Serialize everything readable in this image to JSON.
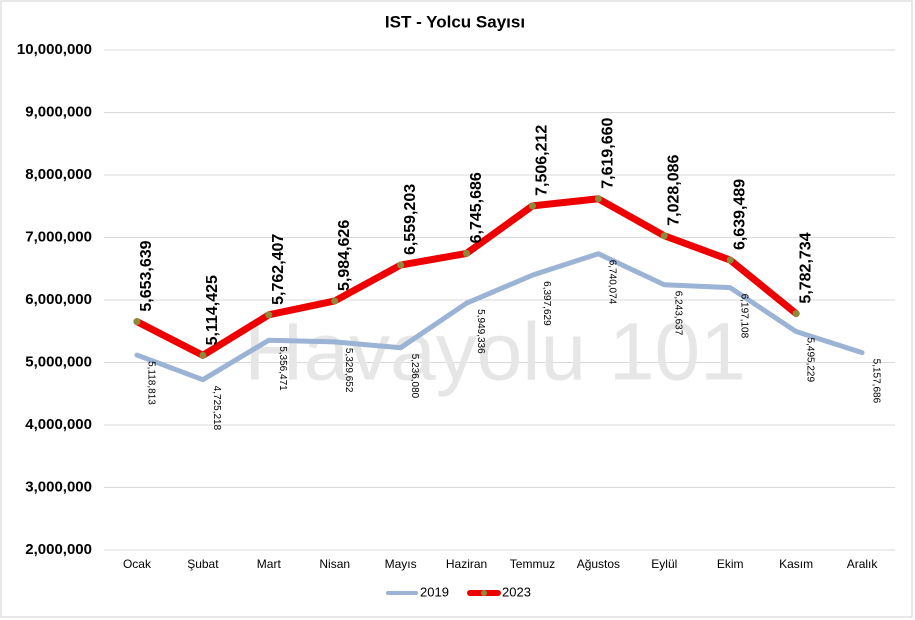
{
  "chart_data": {
    "type": "line",
    "title": "IST - Yolcu Sayısı",
    "watermark": "Havayolu 101",
    "categories": [
      "Ocak",
      "Şubat",
      "Mart",
      "Nisan",
      "Mayıs",
      "Haziran",
      "Temmuz",
      "Ağustos",
      "Eylül",
      "Ekim",
      "Kasım",
      "Aralık"
    ],
    "series": [
      {
        "name": "2019",
        "color": "#9bb3d4",
        "values": [
          5118813,
          4725218,
          5356471,
          5329652,
          5236080,
          5949336,
          6397629,
          6740074,
          6243637,
          6197108,
          5495229,
          5157686
        ],
        "value_labels": [
          "5,118,813",
          "4,725,218",
          "5,356,471",
          "5,329,652",
          "5,236,080",
          "5,949,336",
          "6,397,629",
          "6,740,074",
          "6,243,637",
          "6,197,108",
          "5,495,229",
          "5,157,686"
        ]
      },
      {
        "name": "2023",
        "color": "#ee0000",
        "marker_color": "#8b8b3a",
        "values": [
          5653639,
          5114425,
          5762407,
          5984626,
          6559203,
          6745686,
          7506212,
          7619660,
          7028086,
          6639489,
          5782734,
          null
        ],
        "value_labels": [
          "5,653,639",
          "5,114,425",
          "5,762,407",
          "5,984,626",
          "6,559,203",
          "6,745,686",
          "7,506,212",
          "7,619,660",
          "7,028,086",
          "6,639,489",
          "5,782,734",
          null
        ]
      }
    ],
    "ylim": [
      2000000,
      10000000
    ],
    "yticks": [
      {
        "value": 2000000,
        "label": "2,000,000"
      },
      {
        "value": 3000000,
        "label": "3,000,000"
      },
      {
        "value": 4000000,
        "label": "4,000,000"
      },
      {
        "value": 5000000,
        "label": "5,000,000"
      },
      {
        "value": 6000000,
        "label": "6,000,000"
      },
      {
        "value": 7000000,
        "label": "7,000,000"
      },
      {
        "value": 8000000,
        "label": "8,000,000"
      },
      {
        "value": 9000000,
        "label": "9,000,000"
      },
      {
        "value": 10000000,
        "label": "10,000,000"
      }
    ],
    "grid": true,
    "legend": "bottom"
  }
}
